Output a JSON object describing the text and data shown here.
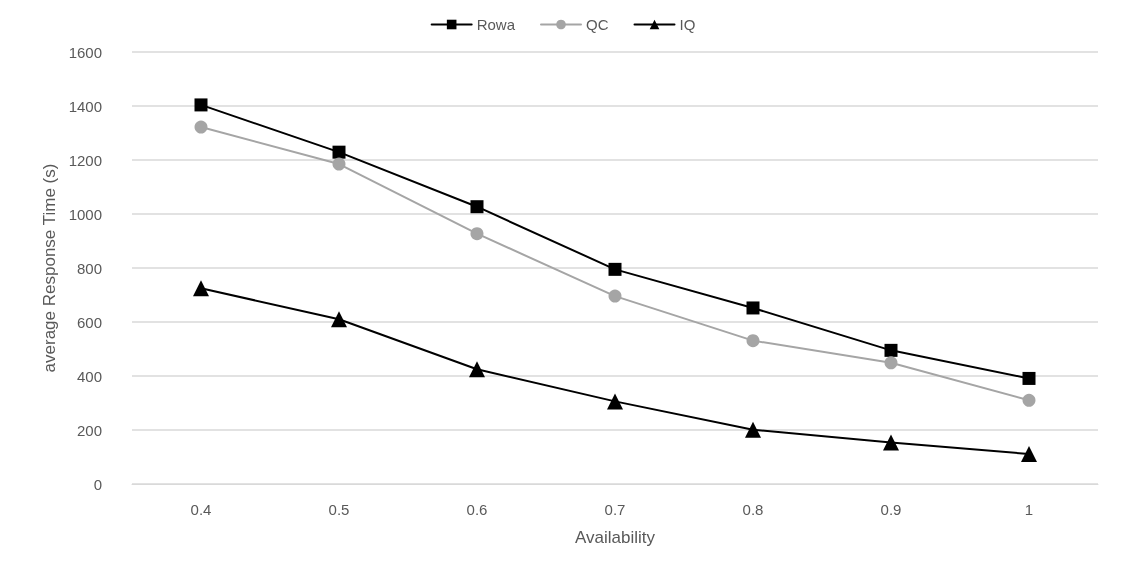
{
  "chart_data": {
    "type": "line",
    "xlabel": "Availability",
    "ylabel": "average Response Time (s)",
    "categories": [
      "0.4",
      "0.5",
      "0.6",
      "0.7",
      "0.8",
      "0.9",
      "1"
    ],
    "series": [
      {
        "name": "Rowa",
        "color": "#000000",
        "marker": "square",
        "values": [
          1404,
          1229,
          1027,
          795,
          652,
          495,
          391
        ]
      },
      {
        "name": "QC",
        "color": "#a5a5a5",
        "marker": "circle",
        "values": [
          1322,
          1185,
          927,
          696,
          531,
          449,
          310
        ]
      },
      {
        "name": "IQ",
        "color": "#000000",
        "marker": "triangle",
        "values": [
          725,
          610,
          425,
          306,
          201,
          154,
          111
        ]
      }
    ],
    "ylim": [
      0,
      1600
    ],
    "yticks": [
      0,
      200,
      400,
      600,
      800,
      1000,
      1200,
      1400,
      1600
    ],
    "grid": "y",
    "legend": "top",
    "line_style": "solid"
  }
}
